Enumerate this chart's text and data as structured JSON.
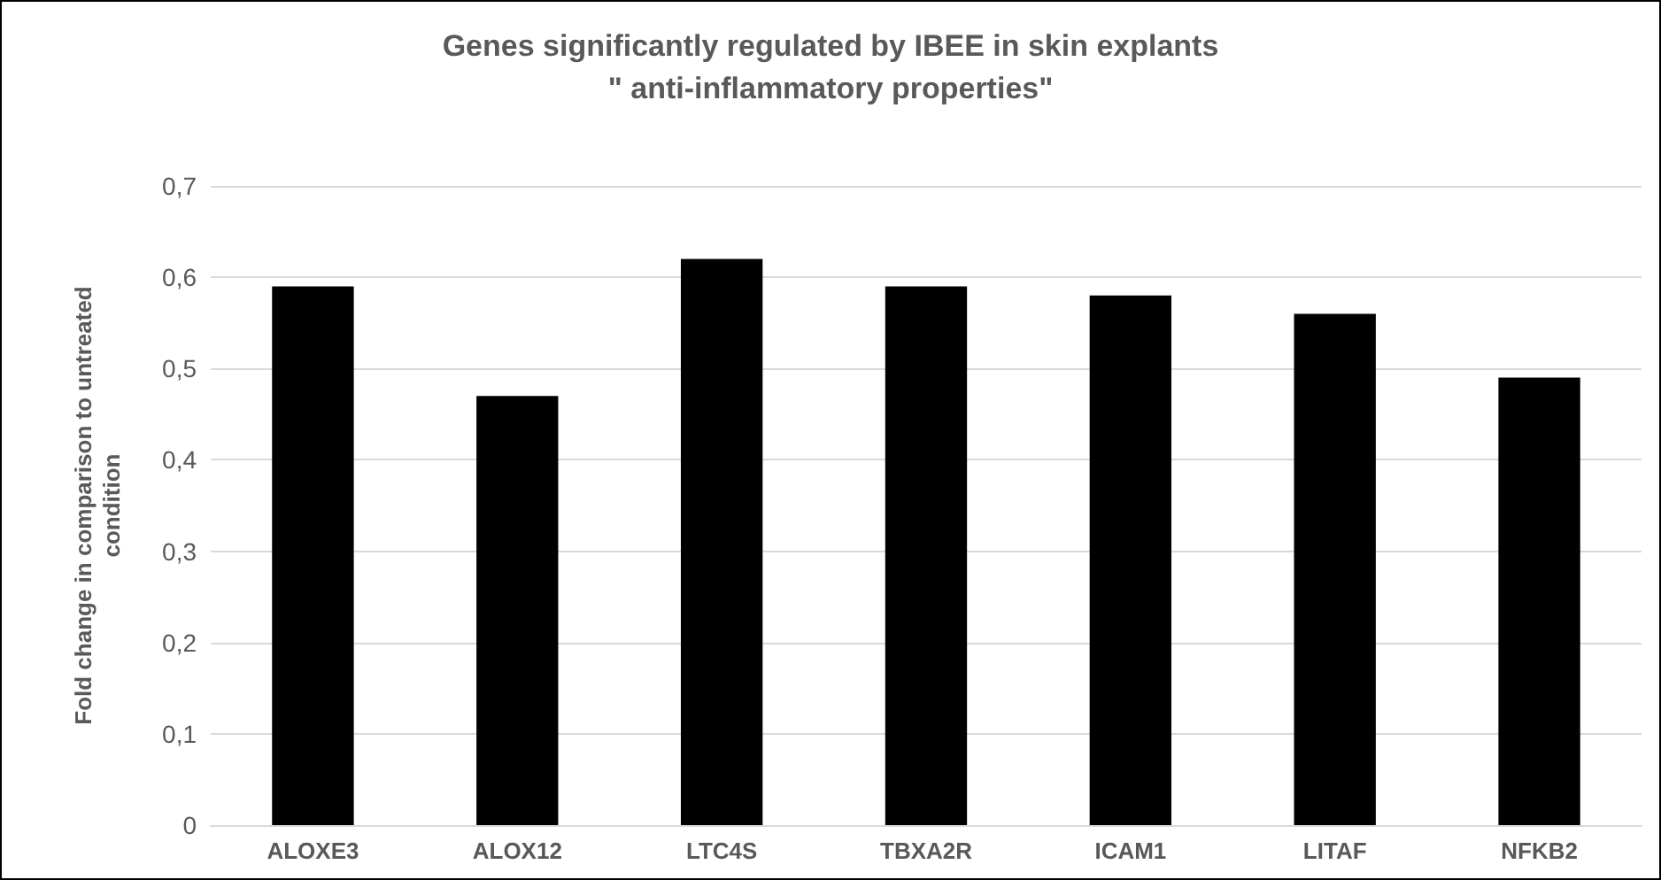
{
  "chart_data": {
    "type": "bar",
    "title": "Genes significantly regulated by IBEE in skin explants\n\" anti-inflammatory properties\"",
    "ylabel": "Fold change in comparison to untreated\ncondition",
    "categories": [
      "ALOXE3",
      "ALOX12",
      "LTC4S",
      "TBXA2R",
      "ICAM1",
      "LITAF",
      "NFKB2"
    ],
    "values": [
      0.59,
      0.47,
      0.62,
      0.59,
      0.58,
      0.56,
      0.49
    ],
    "color": "#000000",
    "ylim": [
      0,
      0.7
    ],
    "yticks": [
      {
        "value": 0,
        "label": "0"
      },
      {
        "value": 0.1,
        "label": "0,1"
      },
      {
        "value": 0.2,
        "label": "0,2"
      },
      {
        "value": 0.3,
        "label": "0,3"
      },
      {
        "value": 0.4,
        "label": "0,4"
      },
      {
        "value": 0.5,
        "label": "0,5"
      },
      {
        "value": 0.6,
        "label": "0,6"
      },
      {
        "value": 0.7,
        "label": "0,7"
      }
    ],
    "grid": true
  }
}
